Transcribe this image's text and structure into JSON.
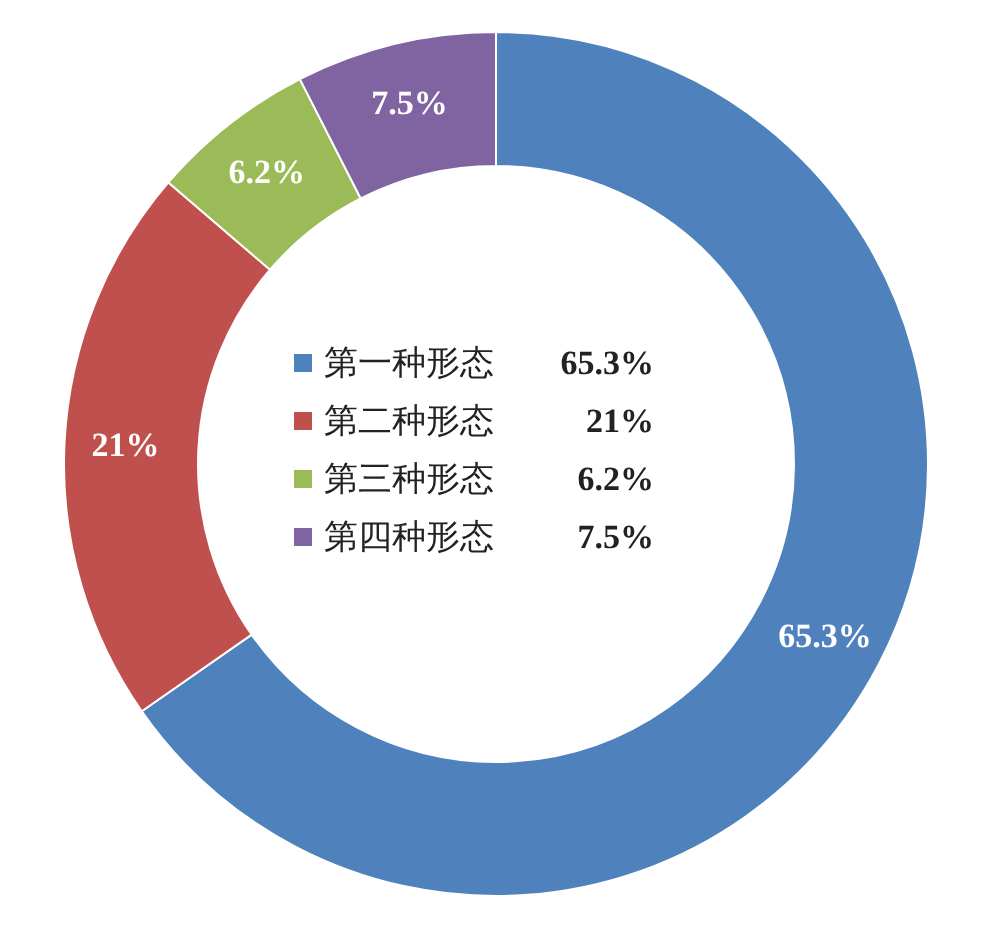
{
  "chart_data": {
    "type": "donut",
    "categories": [
      "第一种形态",
      "第二种形态",
      "第三种形态",
      "第四种形态"
    ],
    "values": [
      65.3,
      21,
      6.2,
      7.5
    ],
    "colors": [
      "#4f81bd",
      "#c0504d",
      "#9bbb59",
      "#8064a2"
    ],
    "value_labels": [
      "65.3%",
      "21%",
      "6.2%",
      "7.5%"
    ],
    "legend": "center"
  }
}
